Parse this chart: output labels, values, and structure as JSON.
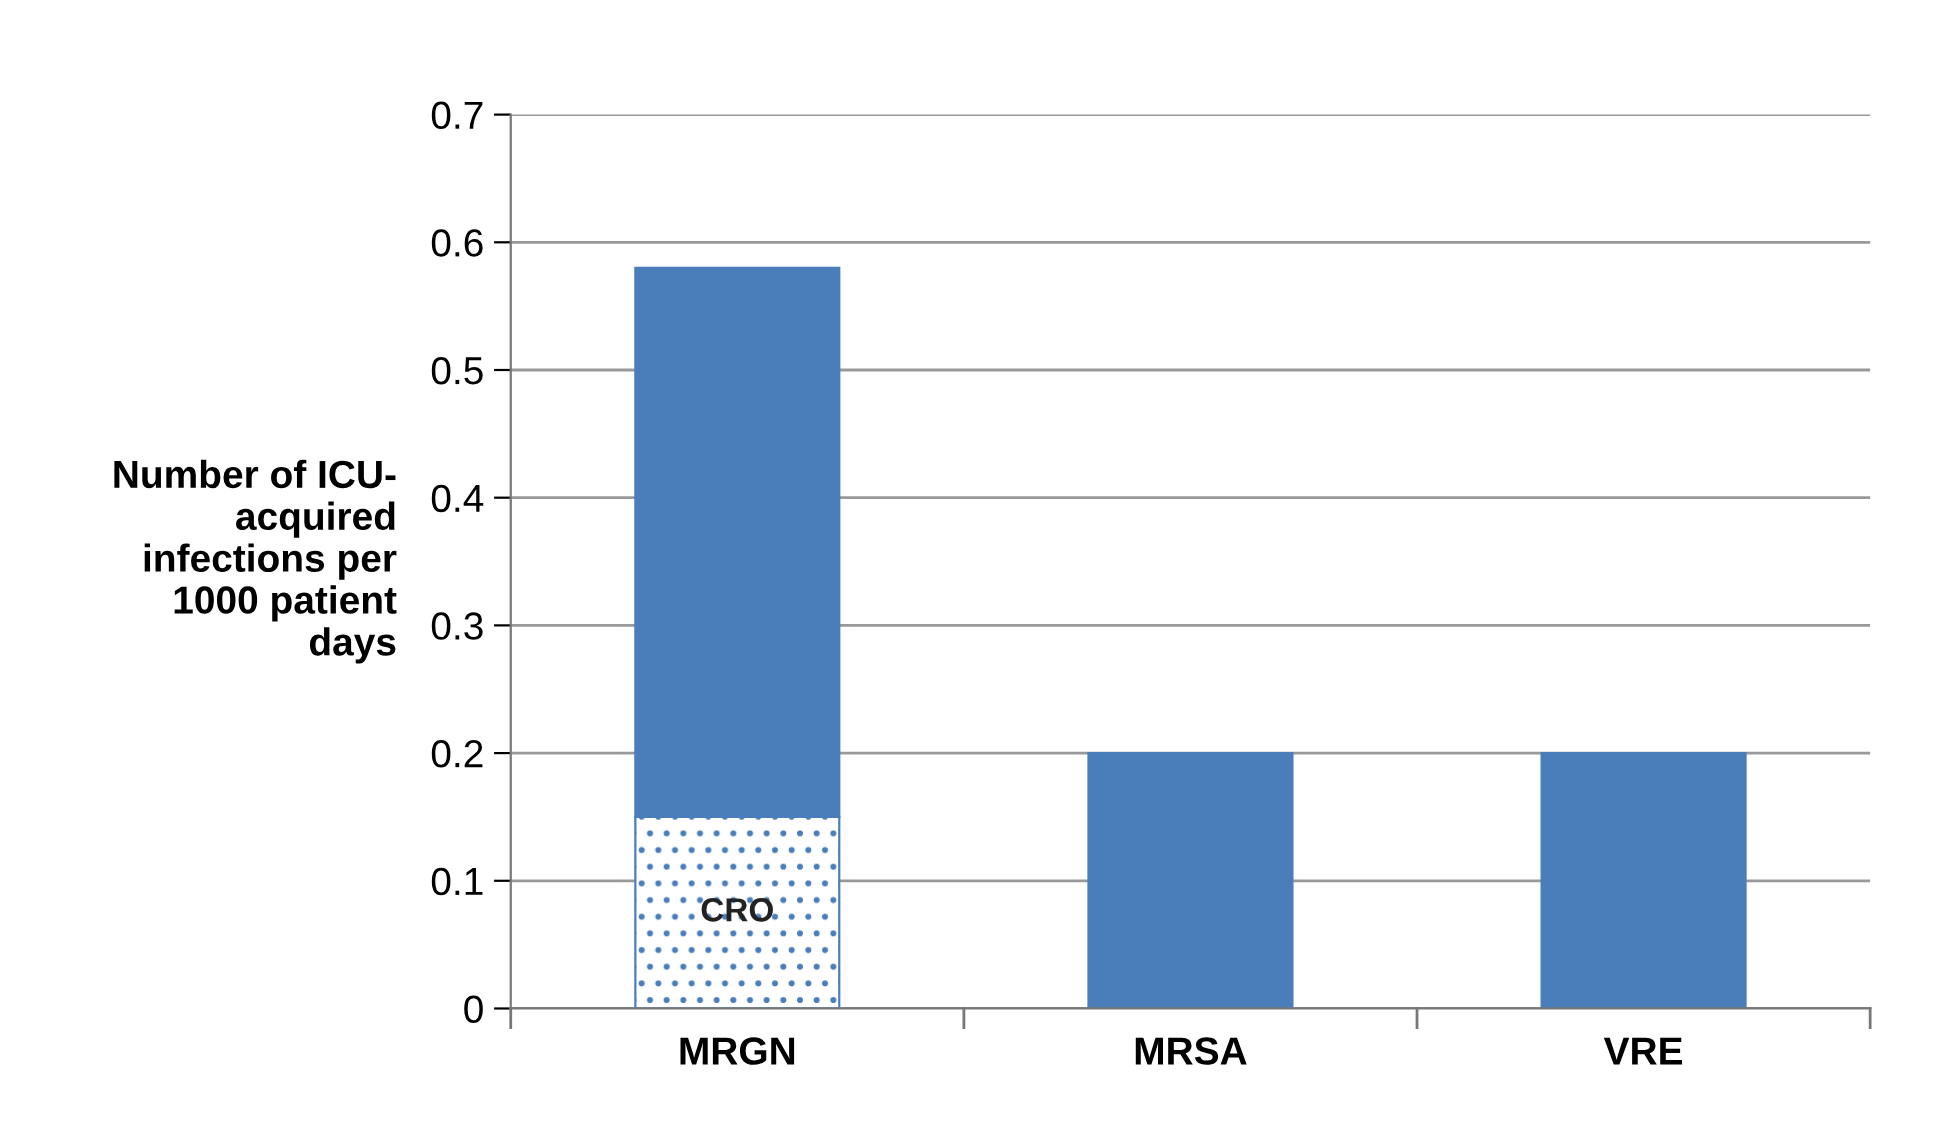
{
  "chart_data": {
    "type": "bar",
    "stacked": true,
    "ylabel": "Number of ICU-\nacquired\ninfections per\n1000 patient\ndays",
    "categories": [
      "MRGN",
      "MRSA",
      "VRE"
    ],
    "series": [
      {
        "name": "CRO",
        "color": "#4a7ebb",
        "values": [
          0.15,
          null,
          null
        ]
      },
      {
        "color": "#4a7ebb",
        "values": [
          0.43,
          0.2,
          0.2
        ]
      }
    ],
    "ylim": [
      0,
      0.7
    ],
    "yticks": [
      0,
      0.1,
      0.2,
      0.3,
      0.4,
      0.5,
      0.6,
      0.7
    ],
    "grid": "y",
    "legend": false
  }
}
